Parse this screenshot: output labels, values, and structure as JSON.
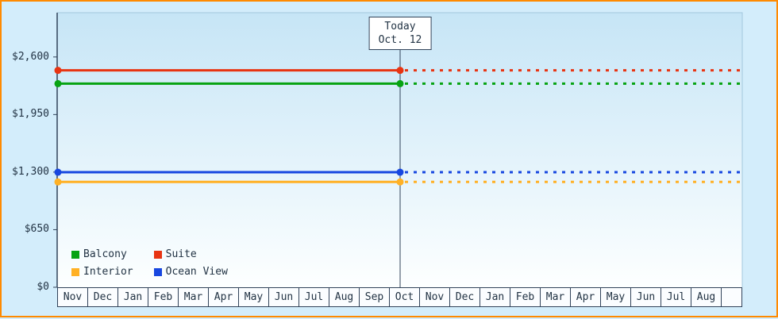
{
  "chart_data": {
    "type": "line",
    "title": "",
    "description": "Cruise cabin price history: flat price lines per cabin category, solid up to today then dotted projection",
    "x_months": [
      "Nov",
      "Dec",
      "Jan",
      "Feb",
      "Mar",
      "Apr",
      "May",
      "Jun",
      "Jul",
      "Aug",
      "Sep",
      "Oct",
      "Nov",
      "Dec",
      "Jan",
      "Feb",
      "Mar",
      "Apr",
      "May",
      "Jun",
      "Jul",
      "Aug"
    ],
    "today": {
      "line1": "Today",
      "line2": "Oct. 12",
      "month_index": 11,
      "fraction": 0.38
    },
    "y_ticks": [
      {
        "value": 0,
        "label": "$0"
      },
      {
        "value": 650,
        "label": "$650"
      },
      {
        "value": 1300,
        "label": "$1,300"
      },
      {
        "value": 1950,
        "label": "$1,950"
      },
      {
        "value": 2600,
        "label": "$2,600"
      }
    ],
    "ylim": [
      0,
      3100
    ],
    "grid": false,
    "series": [
      {
        "name": "Suite",
        "color": "#e83412",
        "value": 2449,
        "style": "solid-then-dotted"
      },
      {
        "name": "Balcony",
        "color": "#07a312",
        "value": 2299,
        "style": "solid-then-dotted"
      },
      {
        "name": "Ocean View",
        "color": "#1747e0",
        "value": 1299,
        "style": "solid-then-dotted"
      },
      {
        "name": "Interior",
        "color": "#ffb125",
        "value": 1189,
        "style": "solid-then-dotted"
      }
    ],
    "legend_order": [
      "Balcony",
      "Suite",
      "Interior",
      "Ocean View"
    ],
    "legend_position": "bottom-left"
  },
  "colors": {
    "background": "#d3edfb",
    "frame_border": "#ff8a00",
    "axis": "#31435a",
    "text": "#223344",
    "plot_top": "#c6e5f6",
    "plot_bottom": "#fdffff",
    "plot_border": "#a3c8dd"
  }
}
